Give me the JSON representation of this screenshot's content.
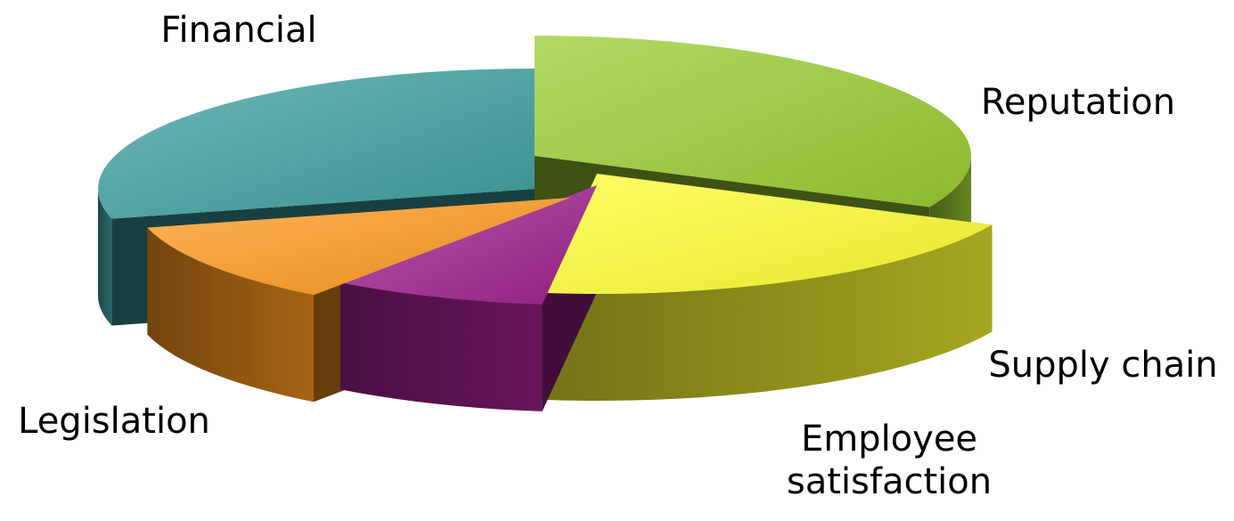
{
  "chart_data": {
    "type": "pie",
    "style": "3d-exploded",
    "title": "",
    "legend": "none",
    "slices": [
      {
        "name": "Financial",
        "value": 32,
        "color": "#9acd32"
      },
      {
        "name": "Reputation",
        "value": 20,
        "color": "#ffff33"
      },
      {
        "name": "Supply chain",
        "value": 8,
        "color": "#a0228f"
      },
      {
        "name": "Employee satisfaction",
        "value": 11,
        "color": "#ff9a1f"
      },
      {
        "name": "Legislation",
        "value": 29,
        "color": "#3fa0a0"
      }
    ]
  }
}
